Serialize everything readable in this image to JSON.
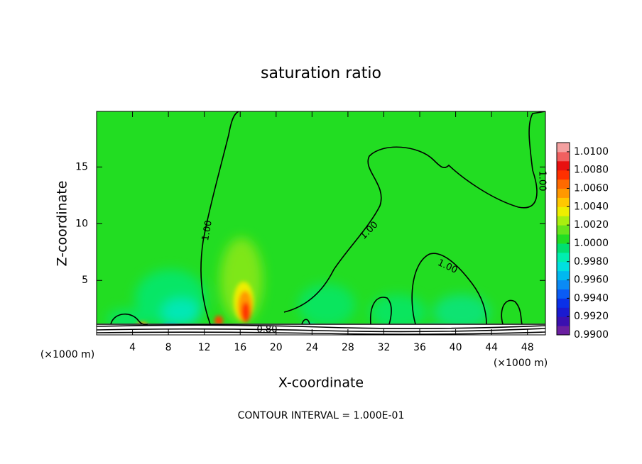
{
  "chart_data": {
    "type": "contour",
    "title": "saturation ratio",
    "x_label": "X-coordinate",
    "y_label": "Z-coordinate",
    "x_unit": "(×1000 m)",
    "y_unit": "(×1000 m)",
    "xlim": [
      0,
      50
    ],
    "ylim": [
      0.2,
      19.9
    ],
    "xticks": [
      4,
      8,
      12,
      16,
      20,
      24,
      28,
      32,
      36,
      40,
      44,
      48
    ],
    "yticks": [
      5,
      10,
      15
    ],
    "contour_labels": [
      "1.00",
      "1.00",
      "1.00",
      "1.00",
      "0.80"
    ],
    "footer": "CONTOUR INTERVAL = 1.000E-01",
    "colorbar": {
      "lim": [
        0.99,
        1.011
      ],
      "ticks": [
        {
          "value": 1.01,
          "label": "1.0100"
        },
        {
          "value": 1.008,
          "label": "1.0080"
        },
        {
          "value": 1.006,
          "label": "1.0060"
        },
        {
          "value": 1.004,
          "label": "1.0040"
        },
        {
          "value": 1.002,
          "label": "1.0020"
        },
        {
          "value": 1.0,
          "label": "1.0000"
        },
        {
          "value": 0.998,
          "label": "0.9980"
        },
        {
          "value": 0.996,
          "label": "0.9960"
        },
        {
          "value": 0.994,
          "label": "0.9940"
        },
        {
          "value": 0.992,
          "label": "0.9920"
        },
        {
          "value": 0.99,
          "label": "0.9900"
        }
      ],
      "colors": [
        "#6a1fa0",
        "#3a10b0",
        "#1a1ad0",
        "#0a30e8",
        "#0a5cf5",
        "#0a8af5",
        "#00b8f0",
        "#00e0e0",
        "#00eeb0",
        "#00e070",
        "#22dd22",
        "#66e41c",
        "#aaee10",
        "#eeee00",
        "#ffc800",
        "#ff9800",
        "#ff6a00",
        "#ff3000",
        "#e81010",
        "#f06060",
        "#f4a0a0"
      ]
    }
  }
}
